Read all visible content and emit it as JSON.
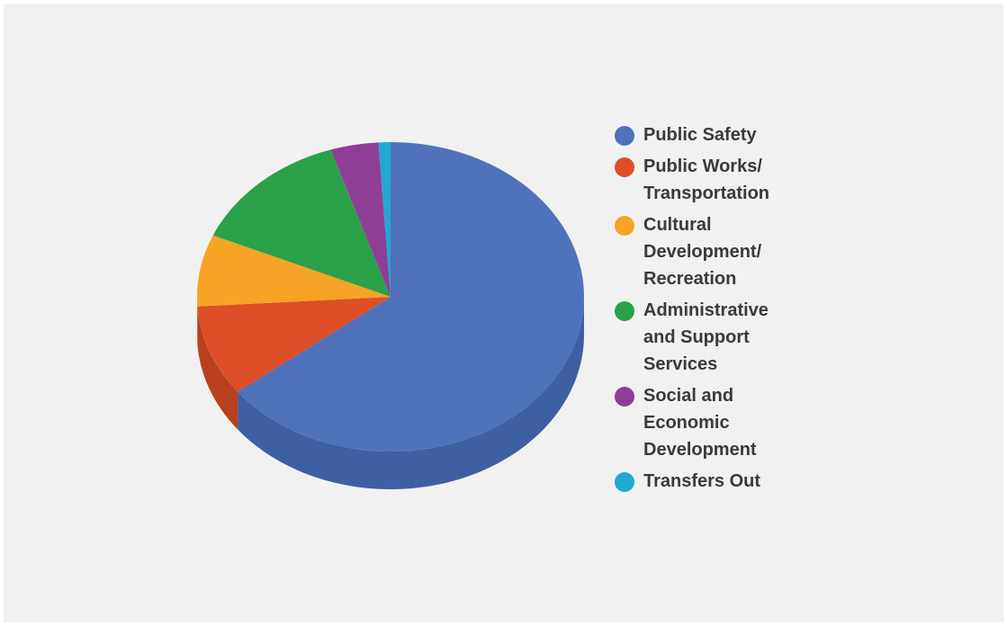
{
  "chart_data": {
    "type": "pie",
    "title": "",
    "style": "3d",
    "legend_position": "right",
    "series": [
      {
        "name": "Public Safety",
        "value": 64.5,
        "color": "#4f72bb",
        "side_color": "#3f5fa3"
      },
      {
        "name": "Public Works/\nTransportation",
        "value": 9.5,
        "color": "#de4f27",
        "side_color": "#b8401f"
      },
      {
        "name": "Cultural\nDevelopment/\nRecreation",
        "value": 7.5,
        "color": "#f7a325",
        "side_color": "#d18820"
      },
      {
        "name": "Administrative\nand Support\nServices",
        "value": 13.5,
        "color": "#2ba14a",
        "side_color": "#22853d"
      },
      {
        "name": "Social and\nEconomic\nDevelopment",
        "value": 4.0,
        "color": "#8f3e98",
        "side_color": "#763180"
      },
      {
        "name": "Transfers Out",
        "value": 1.0,
        "color": "#21a8d3",
        "side_color": "#1b8bb0"
      }
    ]
  }
}
